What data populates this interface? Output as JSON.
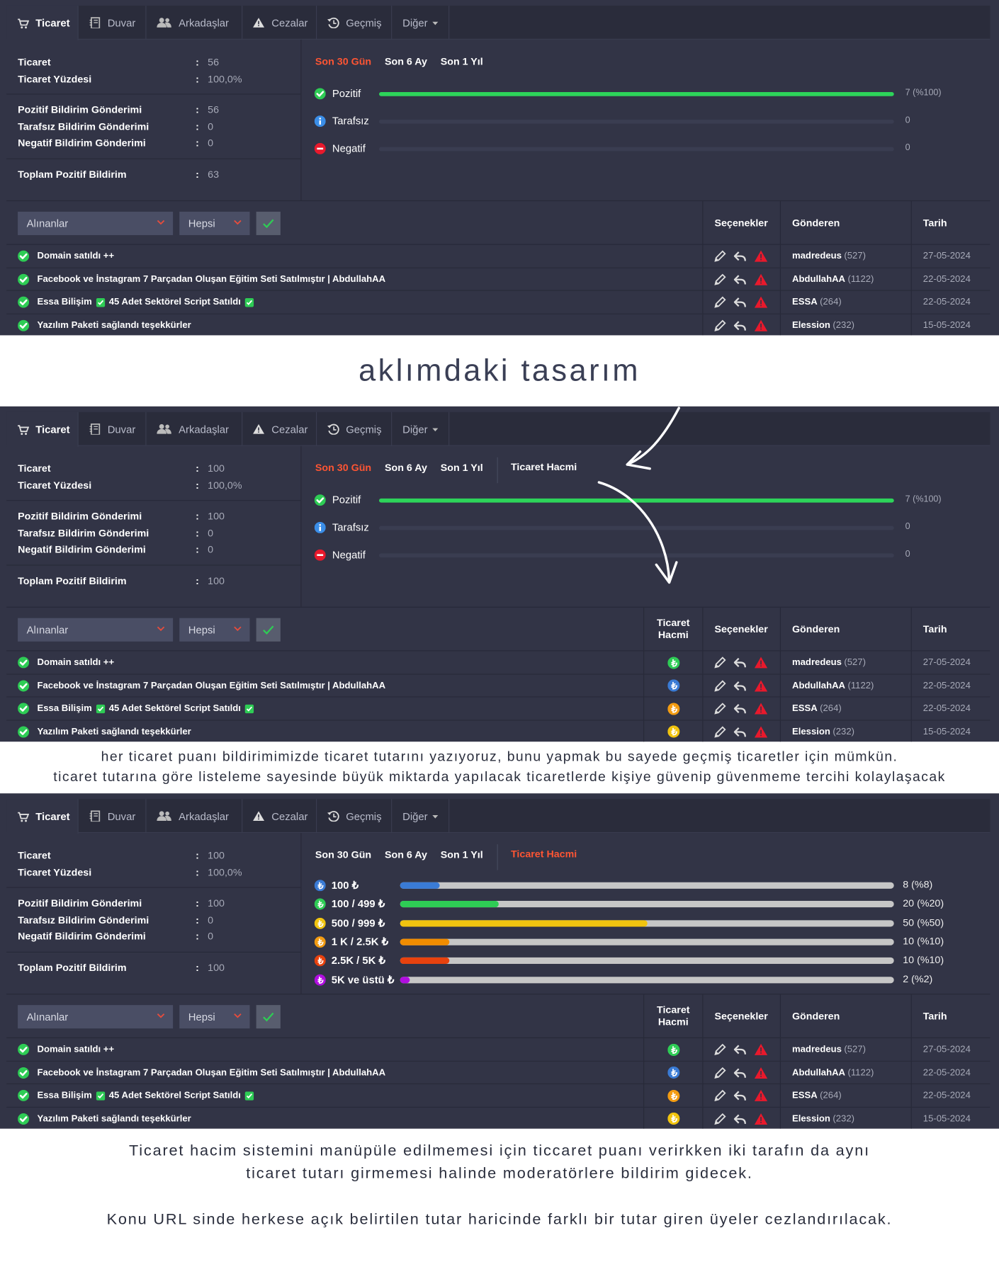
{
  "panels": [
    {
      "tabs": [
        "Ticaret",
        "Duvar",
        "Arkadaşlar",
        "Cezalar",
        "Geçmiş",
        "Diğer"
      ],
      "stat_groups": [
        [
          {
            "label": "Ticaret",
            "value": "56"
          },
          {
            "label": "Ticaret Yüzdesi",
            "value": "100,0%"
          }
        ],
        [
          {
            "label": "Pozitif Bildirim Gönderimi",
            "value": "56"
          },
          {
            "label": "Tarafsız Bildirim Gönderimi",
            "value": "0"
          },
          {
            "label": "Negatif Bildirim Gönderimi",
            "value": "0"
          }
        ],
        [
          {
            "label": "Toplam Pozitif Bildirim",
            "value": "63"
          }
        ]
      ],
      "periods": [
        "Son 30 Gün",
        "Son 6 Ay",
        "Son 1 Yıl"
      ],
      "active_period_index": 0,
      "bar_track_color": "#3a3d51",
      "bars": [
        {
          "label": "Pozitif",
          "icon": "check",
          "icon_color": "#2ecc55",
          "color": "#2dd45a",
          "count": 7,
          "percent": 100,
          "value_label": "7 (%100)"
        },
        {
          "label": "Tarafsız",
          "icon": "info",
          "icon_color": "#3b8ee8",
          "color": "#2dd45a",
          "count": 0,
          "percent": 0
        },
        {
          "label": "Negatif",
          "icon": "minus",
          "icon_color": "#e8192c",
          "color": "#2dd45a",
          "count": 0,
          "percent": 0
        }
      ],
      "filters": [
        "Alınanlar",
        "Hepsi"
      ],
      "columns": [
        "Seçenekler",
        "Gönderen",
        "Tarih"
      ],
      "rows": [
        {
          "title_parts": [
            "Domain satıldı ++"
          ],
          "sender": "madredeus",
          "sender_count": "(527)",
          "date": "27-05-2024"
        },
        {
          "title_parts": [
            "Facebook ve İnstagram 7 Parçadan Oluşan Eğitim Seti Satılmıştır | AbdullahAA"
          ],
          "sender": "AbdullahAA",
          "sender_count": "(1122)",
          "date": "22-05-2024"
        },
        {
          "title_parts": [
            "Essa Bilişim",
            "45 Adet Sektörel Script Satıldı"
          ],
          "sender": "ESSA",
          "sender_count": "(264)",
          "date": "22-05-2024"
        },
        {
          "title_parts": [
            "Yazılım Paketi sağlandı teşekkürler"
          ],
          "sender": "Elession",
          "sender_count": "(232)",
          "date": "15-05-2024"
        }
      ]
    },
    {
      "tabs": [
        "Ticaret",
        "Duvar",
        "Arkadaşlar",
        "Cezalar",
        "Geçmiş",
        "Diğer"
      ],
      "stat_groups": [
        [
          {
            "label": "Ticaret",
            "value": "100"
          },
          {
            "label": "Ticaret Yüzdesi",
            "value": "100,0%"
          }
        ],
        [
          {
            "label": "Pozitif Bildirim Gönderimi",
            "value": "100"
          },
          {
            "label": "Tarafsız Bildirim Gönderimi",
            "value": "0"
          },
          {
            "label": "Negatif Bildirim Gönderimi",
            "value": "0"
          }
        ],
        [
          {
            "label": "Toplam Pozitif Bildirim",
            "value": "100"
          }
        ]
      ],
      "periods": [
        "Son 30 Gün",
        "Son 6 Ay",
        "Son 1 Yıl"
      ],
      "volume_tab": "Ticaret Hacmi",
      "active_period_index": 0,
      "bar_track_color": "#3a3d51",
      "bars": [
        {
          "label": "Pozitif",
          "icon": "check",
          "icon_color": "#2ecc55",
          "color": "#2dd45a",
          "count": 7,
          "percent": 100,
          "value_label": "7 (%100)"
        },
        {
          "label": "Tarafsız",
          "icon": "info",
          "icon_color": "#3b8ee8",
          "color": "#2dd45a",
          "count": 0,
          "percent": 0
        },
        {
          "label": "Negatif",
          "icon": "minus",
          "icon_color": "#e8192c",
          "color": "#2dd45a",
          "count": 0,
          "percent": 0
        }
      ],
      "filters": [
        "Alınanlar",
        "Hepsi"
      ],
      "volume_column": "Ticaret Hacmi",
      "columns": [
        "Seçenekler",
        "Gönderen",
        "Tarih"
      ],
      "rows": [
        {
          "title_parts": [
            "Domain satıldı ++"
          ],
          "volume_color": "#2ecc55",
          "sender": "madredeus",
          "sender_count": "(527)",
          "date": "27-05-2024"
        },
        {
          "title_parts": [
            "Facebook ve İnstagram 7 Parçadan Oluşan Eğitim Seti Satılmıştır | AbdullahAA"
          ],
          "volume_color": "#3a7bd5",
          "sender": "AbdullahAA",
          "sender_count": "(1122)",
          "date": "22-05-2024"
        },
        {
          "title_parts": [
            "Essa Bilişim",
            "45 Adet Sektörel Script Satıldı"
          ],
          "volume_color": "#f39c12",
          "sender": "ESSA",
          "sender_count": "(264)",
          "date": "22-05-2024"
        },
        {
          "title_parts": [
            "Yazılım Paketi sağlandı teşekkürler"
          ],
          "volume_color": "#f1c40f",
          "sender": "Elession",
          "sender_count": "(232)",
          "date": "15-05-2024"
        }
      ]
    },
    {
      "tabs": [
        "Ticaret",
        "Duvar",
        "Arkadaşlar",
        "Cezalar",
        "Geçmiş",
        "Diğer"
      ],
      "stat_groups": [
        [
          {
            "label": "Ticaret",
            "value": "100"
          },
          {
            "label": "Ticaret Yüzdesi",
            "value": "100,0%"
          }
        ],
        [
          {
            "label": "Pozitif Bildirim Gönderimi",
            "value": "100"
          },
          {
            "label": "Tarafsız Bildirim Gönderimi",
            "value": "0"
          },
          {
            "label": "Negatif Bildirim Gönderimi",
            "value": "0"
          }
        ],
        [
          {
            "label": "Toplam Pozitif Bildirim",
            "value": "100"
          }
        ]
      ],
      "periods": [
        "Son 30 Gün",
        "Son 6 Ay",
        "Son 1 Yıl"
      ],
      "volume_tab": "Ticaret Hacmi",
      "volume_tab_active": true,
      "bar_track_color": "#c6c6c6",
      "bars": [
        {
          "label": "100 ₺",
          "icon": "lira",
          "icon_color": "#3a7bd5",
          "color": "#3a7bd5",
          "count": 8,
          "percent": 8,
          "value_label": "8 (%8)"
        },
        {
          "label": "100 / 499 ₺",
          "icon": "lira",
          "icon_color": "#2ecc55",
          "color": "#2ecc55",
          "count": 20,
          "percent": 20,
          "value_label": "20 (%20)"
        },
        {
          "label": "500 / 999 ₺",
          "icon": "lira",
          "icon_color": "#f1c40f",
          "color": "#f1c40f",
          "count": 50,
          "percent": 50,
          "value_label": "50 (%50)"
        },
        {
          "label": "1 K / 2.5K ₺",
          "icon": "lira",
          "icon_color": "#f39c12",
          "color": "#f08c00",
          "count": 10,
          "percent": 10,
          "value_label": "10 (%10)"
        },
        {
          "label": "2.5K / 5K ₺",
          "icon": "lira",
          "icon_color": "#e8420e",
          "color": "#e8420e",
          "count": 10,
          "percent": 10,
          "value_label": "10 (%10)"
        },
        {
          "label": "5K ve üstü ₺",
          "icon": "lira",
          "icon_color": "#b10ee0",
          "color": "#b10ee0",
          "count": 2,
          "percent": 2,
          "value_label": "2 (%2)"
        }
      ],
      "filters": [
        "Alınanlar",
        "Hepsi"
      ],
      "volume_column": "Ticaret Hacmi",
      "columns": [
        "Seçenekler",
        "Gönderen",
        "Tarih"
      ],
      "rows": [
        {
          "title_parts": [
            "Domain satıldı ++"
          ],
          "volume_color": "#2ecc55",
          "sender": "madredeus",
          "sender_count": "(527)",
          "date": "27-05-2024"
        },
        {
          "title_parts": [
            "Facebook ve İnstagram 7 Parçadan Oluşan Eğitim Seti Satılmıştır | AbdullahAA"
          ],
          "volume_color": "#3a7bd5",
          "sender": "AbdullahAA",
          "sender_count": "(1122)",
          "date": "22-05-2024"
        },
        {
          "title_parts": [
            "Essa Bilişim",
            "45 Adet Sektörel Script Satıldı"
          ],
          "volume_color": "#f39c12",
          "sender": "ESSA",
          "sender_count": "(264)",
          "date": "22-05-2024"
        },
        {
          "title_parts": [
            "Yazılım Paketi sağlandı teşekkürler"
          ],
          "volume_color": "#f1c40f",
          "sender": "Elession",
          "sender_count": "(232)",
          "date": "15-05-2024"
        }
      ]
    }
  ],
  "captions": [
    {
      "paragraphs": [
        [
          "aklımdaki tasarım"
        ]
      ]
    },
    {
      "paragraphs": [
        [
          "her ticaret puanı bildirimimizde ticaret tutarını yazıyoruz, bunu yapmak bu sayede geçmiş ticaretler için mümkün.",
          "ticaret tutarına göre listeleme sayesinde büyük miktarda yapılacak ticaretlerde kişiye güvenip güvenmeme tercihi kolaylaşacak"
        ]
      ]
    },
    {
      "paragraphs": [
        [
          "Ticaret hacim sistemini manüpüle edilmemesi için ticcaret puanı verirkken iki tarafın da aynı",
          "ticaret tutarı girmemesi halinde moderatörlere bildirim gidecek."
        ],
        [
          "Konu URL sinde herkese açık belirtilen tutar haricinde farklı bir tutar giren üyeler cezlandırılacak."
        ]
      ]
    }
  ]
}
